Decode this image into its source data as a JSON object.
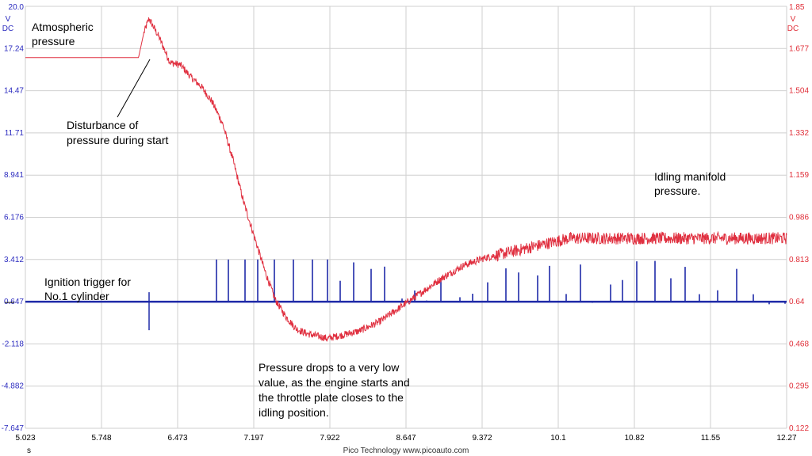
{
  "chart_data": {
    "type": "line",
    "footer": "Pico Technology   www.picoauto.com",
    "x_unit": "s",
    "xlim": [
      5.023,
      12.27
    ],
    "x_ticks": [
      "5.023",
      "5.748",
      "6.473",
      "7.197",
      "7.922",
      "8.647",
      "9.372",
      "10.1",
      "10.82",
      "11.55",
      "12.27"
    ],
    "left_axis": {
      "unit_lines": [
        "V",
        "DC"
      ],
      "color": "#2b2bbf",
      "ylim": [
        -7.647,
        20.0
      ],
      "ticks": [
        "20.0",
        "17.24",
        "14.47",
        "11.71",
        "8.941",
        "6.176",
        "3.412",
        "0.647",
        "-2.118",
        "-4.882",
        "-7.647"
      ]
    },
    "right_axis": {
      "unit_lines": [
        "V",
        "DC"
      ],
      "color": "#e0303a",
      "ylim": [
        0.122,
        1.85
      ],
      "ticks": [
        "1.85",
        "1.677",
        "1.504",
        "1.332",
        "1.159",
        "0.986",
        "0.813",
        "0.64",
        "0.468",
        "0.295",
        "0.122"
      ]
    },
    "series": [
      {
        "axis": "right",
        "color": "#e03040",
        "x": [
          5.023,
          5.9,
          6.1,
          6.15,
          6.2,
          6.3,
          6.4,
          6.5,
          6.6,
          6.7,
          6.8,
          6.9,
          7.0,
          7.1,
          7.2,
          7.3,
          7.4,
          7.5,
          7.6,
          7.7,
          7.8,
          7.9,
          8.0,
          8.2,
          8.4,
          8.6,
          8.8,
          9.0,
          9.2,
          9.4,
          9.6,
          9.8,
          10.0,
          10.2,
          10.5,
          11.0,
          11.5,
          12.0,
          12.27
        ],
        "y": [
          1.64,
          1.64,
          1.64,
          1.74,
          1.8,
          1.72,
          1.62,
          1.61,
          1.56,
          1.52,
          1.46,
          1.37,
          1.22,
          1.05,
          0.91,
          0.77,
          0.65,
          0.58,
          0.53,
          0.51,
          0.5,
          0.49,
          0.5,
          0.52,
          0.56,
          0.62,
          0.68,
          0.74,
          0.79,
          0.82,
          0.84,
          0.86,
          0.88,
          0.9,
          0.9,
          0.9,
          0.9,
          0.9,
          0.9
        ]
      },
      {
        "axis": "left",
        "color": "#1f2aa8",
        "baseline": 0.647,
        "spike_peaks": [
          3.412,
          6.0
        ]
      }
    ],
    "annotations": [
      {
        "lines": [
          "Atmospheric",
          "pressure"
        ]
      },
      {
        "lines": [
          "Disturbance of",
          "pressure during start"
        ]
      },
      {
        "lines": [
          "Ignition trigger for",
          "No.1 cylinder"
        ]
      },
      {
        "lines": [
          "Pressure drops to a very low",
          "value, as the engine starts and",
          "the throttle plate closes to the",
          "idling position."
        ]
      },
      {
        "lines": [
          "Idling manifold",
          "pressure."
        ]
      }
    ],
    "grid": true
  }
}
